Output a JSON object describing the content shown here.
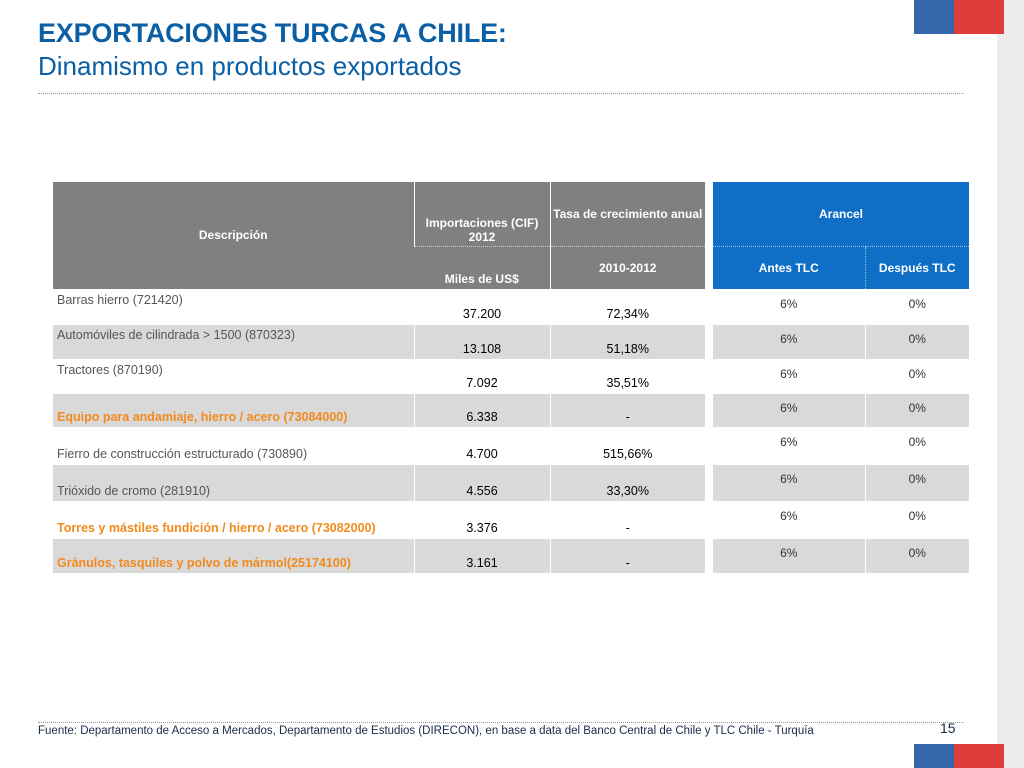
{
  "header": {
    "title": "EXPORTACIONES TURCAS A CHILE:",
    "subtitle": "Dinamismo en productos exportados"
  },
  "colors": {
    "title_blue": "#0b5fa5",
    "header_gray": "#808080",
    "header_blue": "#0f6fc6",
    "highlight_orange": "#f28a1e",
    "row_shade": "#d9d9d9",
    "flag_blue": "#3366aa",
    "flag_red": "#e03c3c"
  },
  "table": {
    "headers": {
      "descripcion": "Descripción",
      "importaciones": "Importaciones (CIF) 2012",
      "importaciones_unit": "Miles de US$",
      "tasa": "Tasa de crecimiento anual",
      "tasa_period": "2010-2012"
    },
    "rows": [
      {
        "desc": "Barras hierro (721420)",
        "imp": "37.200",
        "tasa": "72,34%"
      },
      {
        "desc": "Automóviles de cilindrada > 1500 (870323)",
        "imp": "13.108",
        "tasa": "51,18%"
      },
      {
        "desc": "Tractores (870190)",
        "imp": "7.092",
        "tasa": "35,51%"
      },
      {
        "desc": "Equipo para andamiaje, hierro / acero (73084000)",
        "imp": "6.338",
        "tasa": "-"
      },
      {
        "desc": "Fierro de construcción estructurado (730890)",
        "imp": "4.700",
        "tasa": "515,66%"
      },
      {
        "desc": "Trióxido de cromo (281910)",
        "imp": "4.556",
        "tasa": "33,30%"
      },
      {
        "desc": "Torres y mástiles fundición / hierro / acero (73082000)",
        "imp": "3.376",
        "tasa": "-"
      },
      {
        "desc": "Gránulos, tasquiles  y polvo de mármol(25174100)",
        "imp": "3.161",
        "tasa": "-"
      }
    ]
  },
  "arancel": {
    "title": "Arancel",
    "antes_label": "Antes TLC",
    "despues_label": "Después TLC",
    "rows": [
      {
        "antes": "6%",
        "despues": "0%"
      },
      {
        "antes": "6%",
        "despues": "0%"
      },
      {
        "antes": "6%",
        "despues": "0%"
      },
      {
        "antes": "6%",
        "despues": "0%"
      },
      {
        "antes": "6%",
        "despues": "0%"
      },
      {
        "antes": "6%",
        "despues": "0%"
      },
      {
        "antes": "6%",
        "despues": "0%"
      },
      {
        "antes": "6%",
        "despues": "0%"
      }
    ]
  },
  "footer": {
    "source": "Fuente: Departamento de Acceso a Mercados, Departamento de Estudios (DIRECON), en base a data del Banco Central de Chile y TLC Chile - Turquía",
    "page_number": "15"
  }
}
